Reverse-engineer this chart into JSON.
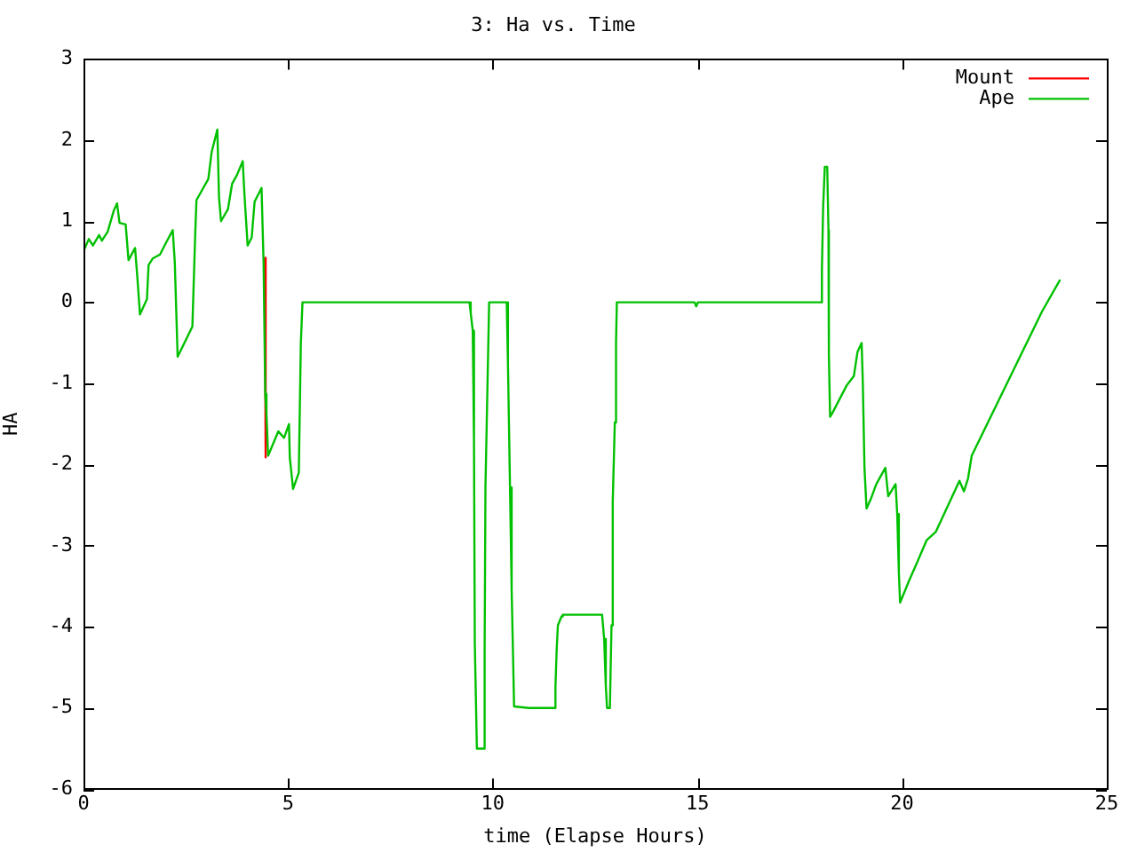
{
  "chart_data": {
    "type": "line",
    "title": "3: Ha vs. Time",
    "xlabel": "time (Elapse Hours)",
    "ylabel": "HA",
    "xlim": [
      0,
      25
    ],
    "ylim": [
      -6,
      3
    ],
    "xticks": [
      0,
      5,
      10,
      15,
      20,
      25
    ],
    "yticks": [
      -6,
      -5,
      -4,
      -3,
      -2,
      -1,
      0,
      1,
      2,
      3
    ],
    "legend": "top right",
    "marker": "none",
    "line_style": "solid",
    "series": [
      {
        "name": "Mount",
        "color": "#ff0000",
        "x": [
          4.43,
          4.45
        ],
        "values": [
          0.55,
          -1.91
        ]
      },
      {
        "name": "Ape",
        "color": "#00c000",
        "x": [
          0,
          0.13,
          0.23,
          0.38,
          0.45,
          0.59,
          0.74,
          0.82,
          0.88,
          1.03,
          1.1,
          1.26,
          1.32,
          1.38,
          1.55,
          1.59,
          1.69,
          1.87,
          1.98,
          2.18,
          2.23,
          2.3,
          2.66,
          2.73,
          2.76,
          3.05,
          3.13,
          3.27,
          3.31,
          3.36,
          3.53,
          3.63,
          3.75,
          3.89,
          3.93,
          4.01,
          4.11,
          4.18,
          4.35,
          4.4,
          4.44,
          4.47,
          4.51,
          4.76,
          4.9,
          5.02,
          5.04,
          5.12,
          5.26,
          5.31,
          5.35,
          9.43,
          9.46,
          9.51,
          9.54,
          9.56,
          9.61,
          9.78,
          9.8,
          9.82,
          9.88,
          9.91,
          10.34,
          10.37,
          10.42,
          10.46,
          10.5,
          10.52,
          10.89,
          11.51,
          11.53,
          11.56,
          11.59,
          11.68,
          11.71,
          12.67,
          12.72,
          12.76,
          12.79,
          12.86,
          12.9,
          12.93,
          12.98,
          13.01,
          13.03,
          14.93,
          14.97,
          15.01,
          18.03,
          18.04,
          18.07,
          18.11,
          18.17,
          18.2,
          18.21,
          18.24,
          18.29,
          18.65,
          18.82,
          18.91,
          19.01,
          19.04,
          19.08,
          19.13,
          19.23,
          19.37,
          19.59,
          19.66,
          19.84,
          19.88,
          19.92,
          19.95,
          20.17,
          20.38,
          20.6,
          20.82,
          21.4,
          21.51,
          21.61,
          21.7,
          23.42,
          23.86
        ],
        "values": [
          0.63,
          0.78,
          0.7,
          0.83,
          0.76,
          0.87,
          1.13,
          1.22,
          0.98,
          0.96,
          0.52,
          0.67,
          0.28,
          -0.15,
          0.04,
          0.46,
          0.54,
          0.59,
          0.7,
          0.89,
          0.5,
          -0.67,
          -0.3,
          0.85,
          1.26,
          1.52,
          1.85,
          2.13,
          1.3,
          1.0,
          1.15,
          1.46,
          1.57,
          1.74,
          1.35,
          0.7,
          0.8,
          1.24,
          1.41,
          0.48,
          -1.13,
          -1.37,
          -1.89,
          -1.59,
          -1.67,
          -1.5,
          -1.91,
          -2.3,
          -2.1,
          -0.5,
          0,
          0,
          -0.13,
          -0.35,
          -1.7,
          -4.2,
          -5.5,
          -5.5,
          -4.28,
          -2.28,
          -0.76,
          0,
          0,
          -0.76,
          -2.28,
          -3.54,
          -4.5,
          -4.98,
          -5.0,
          -5.0,
          -4.74,
          -4.28,
          -3.98,
          -3.87,
          -3.85,
          -3.85,
          -4.15,
          -4.72,
          -5.0,
          -5.0,
          -3.98,
          -2.46,
          -1.48,
          -0.5,
          0,
          0,
          -0.05,
          0,
          0,
          0.4,
          1.17,
          1.67,
          1.67,
          0.89,
          -0.65,
          -1.41,
          -1.37,
          -1.02,
          -0.91,
          -0.61,
          -0.5,
          -1.0,
          -2.04,
          -2.54,
          -2.43,
          -2.24,
          -2.04,
          -2.39,
          -2.24,
          -2.61,
          -3.33,
          -3.7,
          -3.43,
          -3.19,
          -2.93,
          -2.83,
          -2.2,
          -2.33,
          -2.17,
          -1.89,
          -0.11,
          0.28
        ]
      }
    ]
  }
}
